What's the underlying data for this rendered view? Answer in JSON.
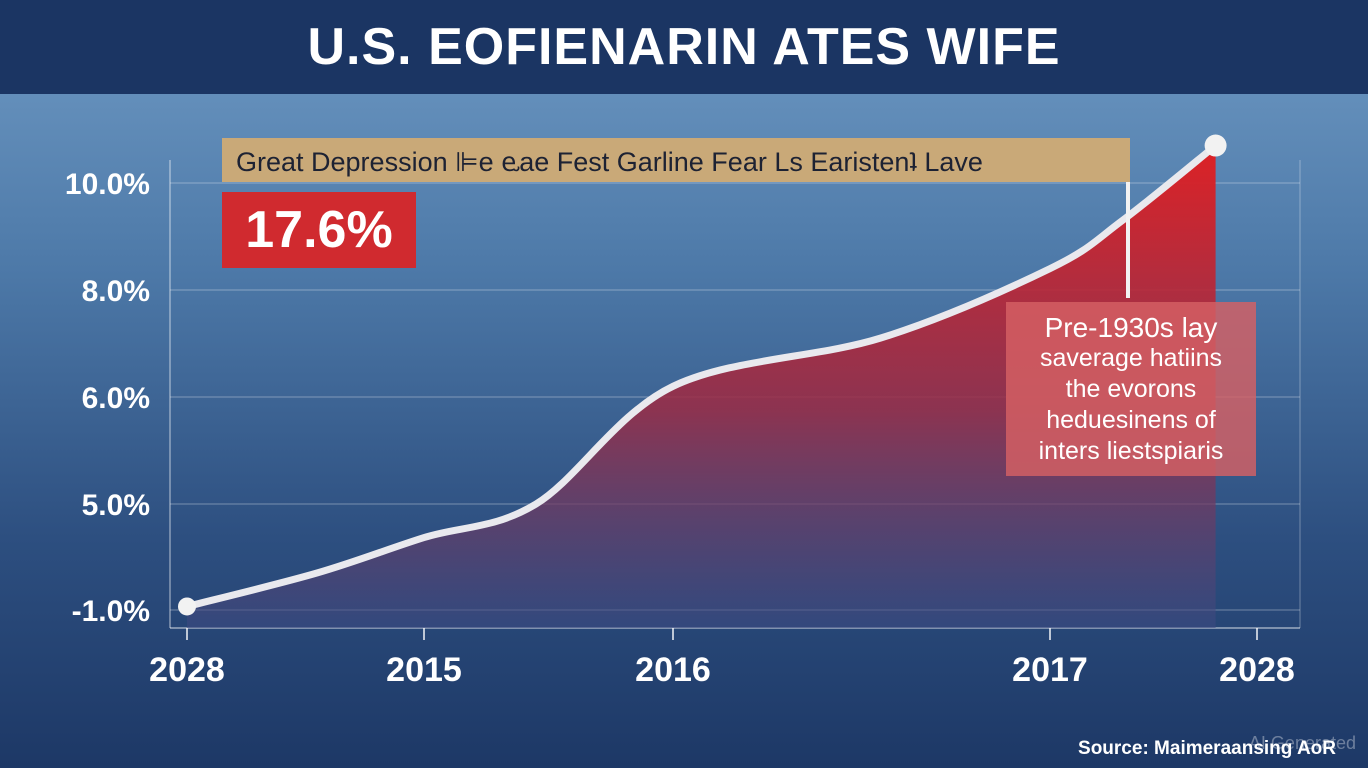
{
  "header": {
    "title": "U.S. EOFIENARIN ATES WIFE"
  },
  "annotations": {
    "banner": "Great Depression ⊫e ⱸae Fest Garline Fear Ls Earistenʇ Lave",
    "big_value": "17.6%",
    "note_lines": [
      "Pre-1930s lay",
      "saverage hatiins",
      "the evorons",
      "heduesinens of",
      "inters liestspiaris"
    ]
  },
  "footer": {
    "source": "Source: Maimeraansing AoR",
    "watermark": "AI Generated"
  },
  "colors": {
    "line": "#e9e9ee",
    "fill_top": "#e01f22",
    "fill_bottom": "#3d4a82",
    "title_bg": "#1b3563",
    "banner_bg": "#c9a978",
    "value_bg": "#d02a2f"
  },
  "chart_data": {
    "type": "area",
    "title": "U.S. EOFIENARIN ATES WIFE",
    "xlabel": "",
    "ylabel": "",
    "x_tick_labels": [
      "2028",
      "2015",
      "2016",
      "2017",
      "2028"
    ],
    "y_tick_labels": [
      "10.0%",
      "8.0%",
      "6.0%",
      "5.0%",
      "-1.0%"
    ],
    "grid": true,
    "series": [
      {
        "values": [
          {
            "tick_pos": 0.0,
            "value": -0.8
          },
          {
            "tick_pos": 0.55,
            "value": 1.1
          },
          {
            "tick_pos": 1.0,
            "value": 3.1
          },
          {
            "tick_pos": 1.45,
            "value": 5.0
          },
          {
            "tick_pos": 2.0,
            "value": 6.2
          },
          {
            "tick_pos": 2.55,
            "value": 7.1
          },
          {
            "tick_pos": 3.0,
            "value": 8.4
          },
          {
            "tick_pos": 3.35,
            "value": 9.3
          },
          {
            "tick_pos": 3.8,
            "value": 10.7
          }
        ]
      }
    ]
  }
}
